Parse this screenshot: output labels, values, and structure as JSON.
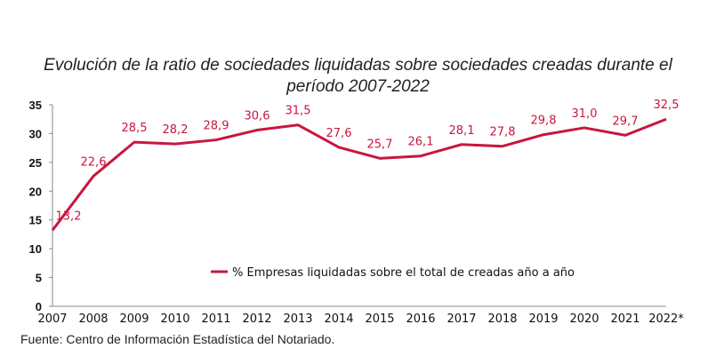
{
  "chart_data": {
    "type": "line",
    "title": "Evolución de la ratio de sociedades liquidadas sobre sociedades creadas durante el período 2007-2022",
    "title_lines": [
      "Evolución de la ratio de sociedades liquidadas sobre sociedades creadas durante el",
      "período 2007-2022"
    ],
    "categories": [
      "2007",
      "2008",
      "2009",
      "2010",
      "2011",
      "2012",
      "2013",
      "2014",
      "2015",
      "2016",
      "2017",
      "2018",
      "2019",
      "2020",
      "2021",
      "2022*"
    ],
    "series": [
      {
        "name": "% Empresas liquidadas sobre el total de creadas año a año",
        "values": [
          13.2,
          22.6,
          28.5,
          28.2,
          28.9,
          30.6,
          31.5,
          27.6,
          25.7,
          26.1,
          28.1,
          27.8,
          29.8,
          31.0,
          29.7,
          32.5
        ],
        "labels": [
          "13,2",
          "22,6",
          "28,5",
          "28,2",
          "28,9",
          "30,6",
          "31,5",
          "27,6",
          "25,7",
          "26,1",
          "28,1",
          "27,8",
          "29,8",
          "31,0",
          "29,7",
          "32,5"
        ],
        "color": "#c8163f"
      }
    ],
    "ylim": [
      0,
      35
    ],
    "yticks": [
      "0",
      "5",
      "10",
      "15",
      "20",
      "25",
      "30",
      "35"
    ],
    "grid": false,
    "legend": "center-right inside plot"
  },
  "source": "Fuente: Centro de Información Estadística del Notariado."
}
